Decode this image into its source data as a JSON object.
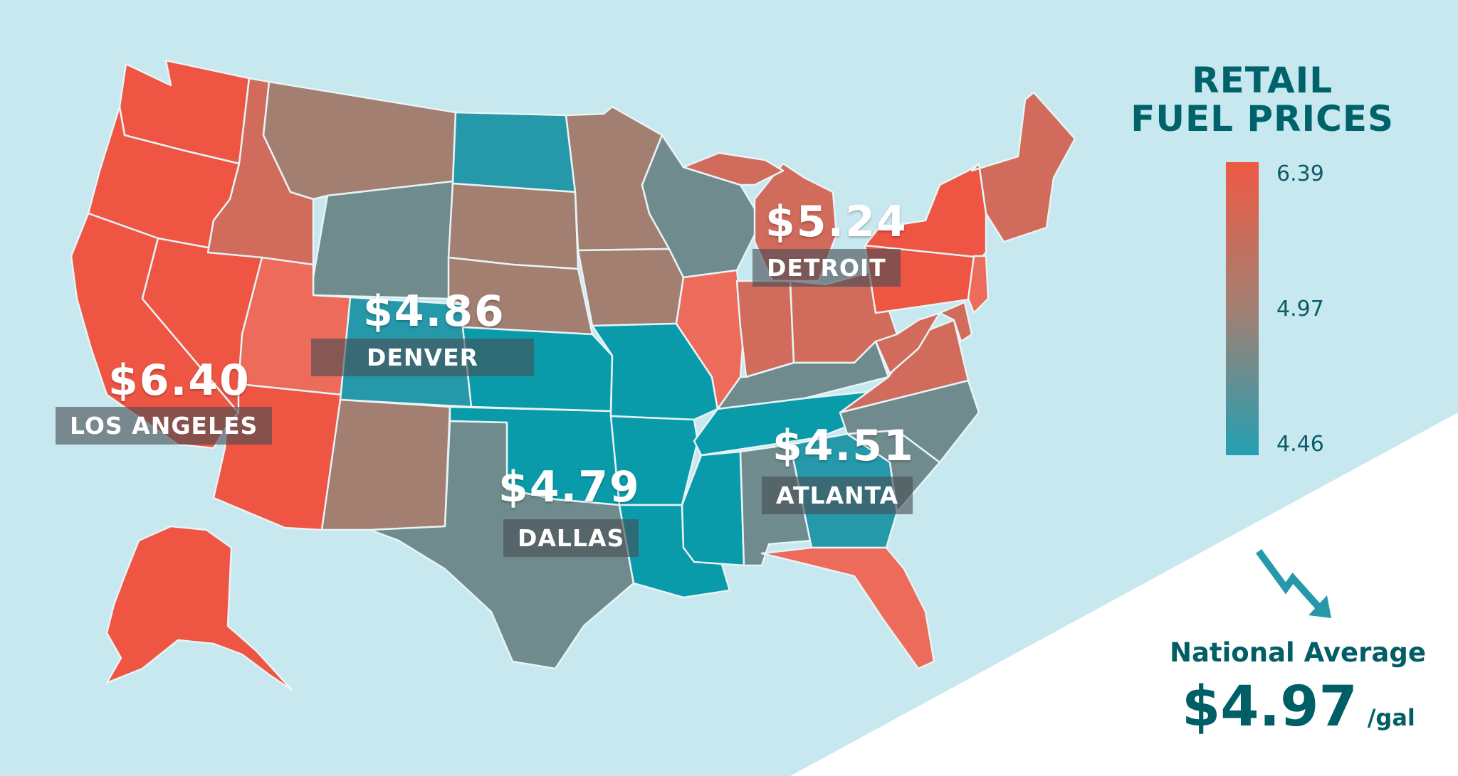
{
  "title_line1": "RETAIL",
  "title_line2": "FUEL PRICES",
  "legend": {
    "max_label": "6.39",
    "mid_label": "4.97",
    "min_label": "4.46",
    "colors": {
      "high": "#ee5a44",
      "mid": "#a37f72",
      "low": "#23a0b3"
    }
  },
  "cities": [
    {
      "name": "LOS ANGELES",
      "price": "$6.40"
    },
    {
      "name": "DENVER",
      "price": "$4.86"
    },
    {
      "name": "DALLAS",
      "price": "$4.79"
    },
    {
      "name": "DETROIT",
      "price": "$5.24"
    },
    {
      "name": "ATLANTA",
      "price": "$4.51"
    }
  ],
  "national": {
    "label": "National Average",
    "value": "$4.97",
    "unit": "/gal",
    "trend_icon": "down-trend-arrow-icon"
  },
  "palette": {
    "red": "#ee5543",
    "salmon": "#ec6b5b",
    "coral": "#d16b5c",
    "brown": "#a37f72",
    "slate": "#6f8b8d",
    "teal": "#2598aa",
    "deep_teal": "#0a9bab",
    "ocean": "#c7e8ee"
  }
}
